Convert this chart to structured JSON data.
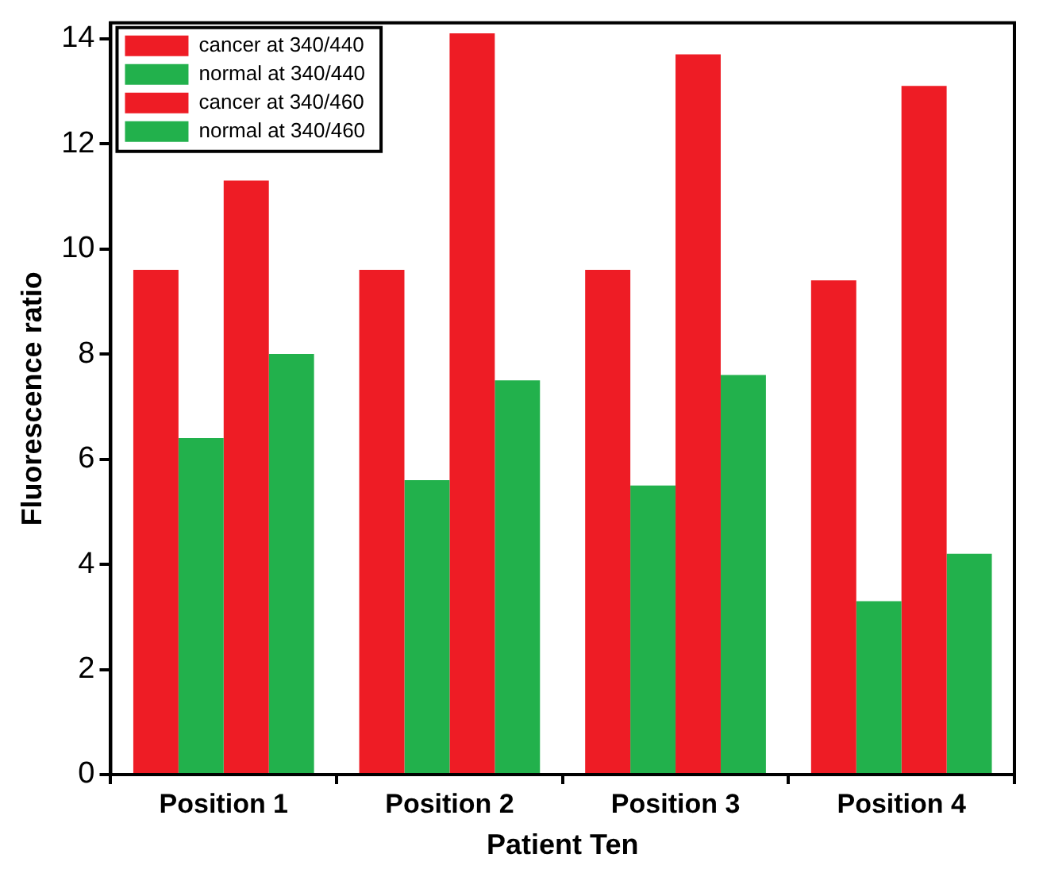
{
  "chart_data": {
    "type": "bar",
    "xlabel": "Patient Ten",
    "ylabel": "Fluorescence ratio",
    "categories": [
      "Position 1",
      "Position 2",
      "Position 3",
      "Position 4"
    ],
    "series": [
      {
        "name": "cancer at 340/440",
        "color": "#ee1c25",
        "values": [
          9.6,
          9.6,
          9.6,
          9.4
        ]
      },
      {
        "name": "normal at 340/440",
        "color": "#22b14c",
        "values": [
          6.4,
          5.6,
          5.5,
          3.3
        ]
      },
      {
        "name": "cancer at 340/460",
        "color": "#ee1c25",
        "values": [
          11.3,
          14.1,
          13.7,
          13.1
        ]
      },
      {
        "name": "normal at 340/460",
        "color": "#22b14c",
        "values": [
          8.0,
          7.5,
          7.6,
          4.2
        ]
      }
    ],
    "ylim": [
      0,
      14.3
    ],
    "yticks": [
      0,
      2,
      4,
      6,
      8,
      10,
      12,
      14
    ],
    "grid": false,
    "legend": "top left"
  }
}
